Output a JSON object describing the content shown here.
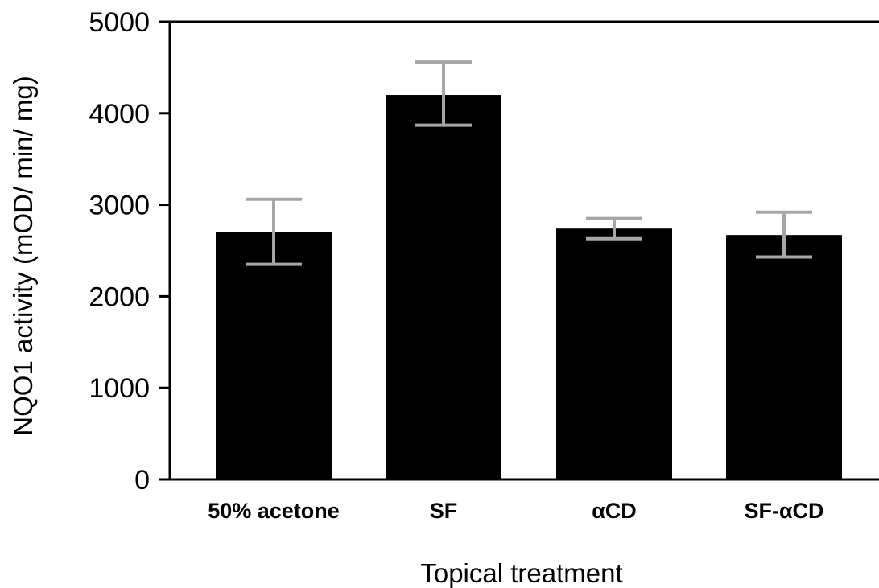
{
  "chart_data": {
    "type": "bar",
    "categories": [
      "50% acetone",
      "SF",
      "αCD",
      "SF-αCD"
    ],
    "values": [
      2700,
      4200,
      2740,
      2670
    ],
    "error_low": [
      2350,
      3870,
      2630,
      2430
    ],
    "error_high": [
      3060,
      4560,
      2850,
      2920
    ],
    "xlabel": "Topical treatment",
    "ylabel": "NQO1 activity (mOD/ min/ mg)",
    "ylim": [
      0,
      5000
    ],
    "yticks": [
      0,
      1000,
      2000,
      3000,
      4000,
      5000
    ],
    "grid": false,
    "colors": {
      "bar": "#000000",
      "error_bar": "#a6a6a6",
      "axis": "#000000"
    }
  }
}
